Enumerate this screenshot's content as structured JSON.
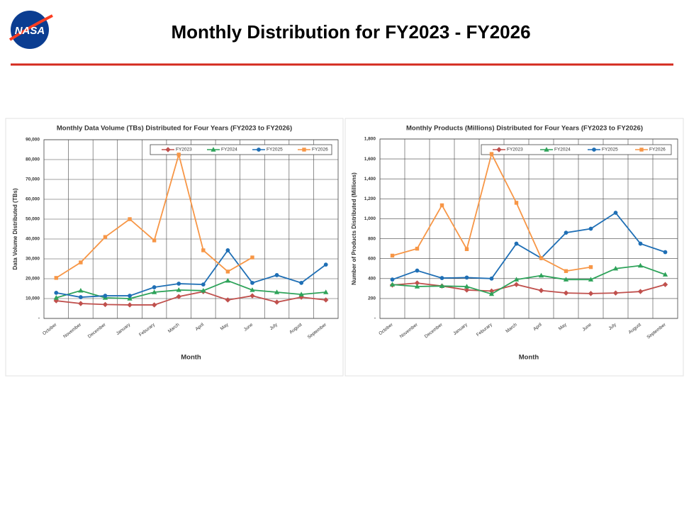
{
  "header": {
    "logo": "NASA",
    "title": "Monthly Distribution for FY2023 - FY2026"
  },
  "chart_data": [
    {
      "type": "line",
      "title": "Monthly Data Volume (TBs) Distributed for Four Years (FY2023 to FY2026)",
      "x_label": "Month",
      "y_label": "Data Volume Distributed (TBs)",
      "categories": [
        "October",
        "November",
        "December",
        "January",
        "Feburary",
        "March",
        "April",
        "May",
        "June",
        "July",
        "August",
        "September"
      ],
      "ylim": [
        0,
        90000
      ],
      "yticks": [
        {
          "value": 0,
          "label": "-"
        },
        {
          "value": 10000,
          "label": "10,000"
        },
        {
          "value": 20000,
          "label": "20,000"
        },
        {
          "value": 30000,
          "label": "30,000"
        },
        {
          "value": 40000,
          "label": "40,000"
        },
        {
          "value": 50000,
          "label": "50,000"
        },
        {
          "value": 60000,
          "label": "60,000"
        },
        {
          "value": 70000,
          "label": "70,000"
        },
        {
          "value": 80000,
          "label": "80,000"
        },
        {
          "value": 90000,
          "label": "90,000"
        }
      ],
      "grid": true,
      "legend": "top-right",
      "series": [
        {
          "name": "FY2023",
          "color": "#c0504d",
          "marker": "diamond",
          "values": [
            8900,
            7500,
            7000,
            6800,
            6800,
            11000,
            13500,
            9300,
            11400,
            8200,
            10700,
            9300
          ]
        },
        {
          "name": "FY2024",
          "color": "#2ea35a",
          "marker": "triangle",
          "values": [
            10400,
            14000,
            10400,
            10000,
            13200,
            14300,
            14000,
            19000,
            14300,
            13200,
            12100,
            13200
          ]
        },
        {
          "name": "FY2025",
          "color": "#1f6fb5",
          "marker": "circle",
          "values": [
            12900,
            10700,
            11400,
            11400,
            15700,
            17500,
            17100,
            34300,
            17900,
            21800,
            17900,
            27100
          ]
        },
        {
          "name": "FY2026",
          "color": "#f79646",
          "marker": "square",
          "values": [
            20400,
            28200,
            41000,
            50000,
            39300,
            82500,
            34300,
            23600,
            30700,
            null,
            null,
            null
          ]
        }
      ]
    },
    {
      "type": "line",
      "title": "Monthly Products (Millions) Distributed for Four Years (FY2023 to FY2026)",
      "x_label": "Month",
      "y_label": "Number of Products Distributed (Millions)",
      "categories": [
        "October",
        "November",
        "December",
        "January",
        "Feburary",
        "March",
        "April",
        "May",
        "June",
        "July",
        "August",
        "September"
      ],
      "ylim": [
        0,
        1800
      ],
      "yticks": [
        {
          "value": 0,
          "label": "-"
        },
        200,
        400,
        600,
        800,
        {
          "value": 1000,
          "label": "1,000"
        },
        {
          "value": 1200,
          "label": "1,200"
        },
        {
          "value": 1400,
          "label": "1,400"
        },
        {
          "value": 1600,
          "label": "1,600"
        },
        {
          "value": 1800,
          "label": "1,800"
        }
      ],
      "grid": true,
      "legend": "top-right",
      "series": [
        {
          "name": "FY2023",
          "color": "#c0504d",
          "marker": "diamond",
          "values": [
            335,
            355,
            325,
            285,
            275,
            340,
            280,
            255,
            250,
            255,
            270,
            340
          ]
        },
        {
          "name": "FY2024",
          "color": "#2ea35a",
          "marker": "triangle",
          "values": [
            340,
            320,
            325,
            320,
            245,
            390,
            430,
            390,
            390,
            500,
            530,
            440
          ]
        },
        {
          "name": "FY2025",
          "color": "#1f6fb5",
          "marker": "circle",
          "values": [
            390,
            480,
            405,
            410,
            400,
            750,
            605,
            860,
            900,
            1060,
            750,
            665
          ]
        },
        {
          "name": "FY2026",
          "color": "#f79646",
          "marker": "square",
          "values": [
            630,
            700,
            1135,
            695,
            1650,
            1160,
            605,
            475,
            515,
            null,
            null,
            null
          ]
        }
      ]
    }
  ]
}
